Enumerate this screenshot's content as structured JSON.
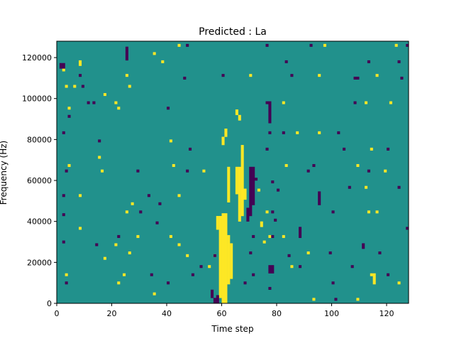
{
  "chart_data": {
    "type": "heatmap",
    "title": "Predicted : La",
    "xlabel": "Time step",
    "ylabel": "Frequency (Hz)",
    "xlim": [
      0,
      128
    ],
    "ylim": [
      0,
      128000
    ],
    "n_time_steps": 128,
    "n_freq_bins": 96,
    "xticks": [
      0,
      20,
      40,
      60,
      80,
      100,
      120
    ],
    "yticks": [
      0,
      20000,
      40000,
      60000,
      80000,
      100000,
      120000
    ],
    "colormap": {
      "background": "#21918c",
      "high": "#fde725",
      "low": "#440154"
    },
    "background_value": 0.5,
    "cells_note": "runs as [time_step, start_freq_bin, length_bins, value]",
    "cells": [
      [
        60,
        0,
        33,
        1
      ],
      [
        61,
        0,
        33,
        1
      ],
      [
        59,
        2,
        30,
        1
      ],
      [
        58,
        27,
        5,
        1
      ],
      [
        62,
        37,
        13,
        1
      ],
      [
        62,
        7,
        18,
        1
      ],
      [
        63,
        9,
        13,
        1
      ],
      [
        61,
        61,
        3,
        1
      ],
      [
        60,
        58,
        3,
        1
      ],
      [
        66,
        30,
        20,
        1
      ],
      [
        67,
        32,
        26,
        1
      ],
      [
        65,
        40,
        10,
        1
      ],
      [
        68,
        38,
        4,
        1
      ],
      [
        65,
        69,
        2,
        1
      ],
      [
        66,
        67,
        2,
        1
      ],
      [
        70,
        32,
        18,
        0
      ],
      [
        71,
        36,
        14,
        0
      ],
      [
        69,
        30,
        5,
        0
      ],
      [
        77,
        66,
        8,
        0
      ],
      [
        77,
        11,
        3,
        0
      ],
      [
        78,
        11,
        3,
        0
      ],
      [
        56,
        2,
        3,
        0
      ],
      [
        57,
        0,
        2,
        0
      ],
      [
        58,
        0,
        3,
        0
      ],
      [
        2,
        85,
        1,
        1
      ],
      [
        3,
        79,
        1,
        1
      ],
      [
        4,
        71,
        1,
        1
      ],
      [
        4,
        50,
        1,
        1
      ],
      [
        3,
        10,
        1,
        1
      ],
      [
        8,
        87,
        2,
        1
      ],
      [
        6,
        79,
        1,
        1
      ],
      [
        8,
        39,
        1,
        1
      ],
      [
        8,
        27,
        1,
        1
      ],
      [
        15,
        53,
        1,
        1
      ],
      [
        16,
        48,
        1,
        1
      ],
      [
        17,
        76,
        1,
        1
      ],
      [
        21,
        73,
        1,
        1
      ],
      [
        22,
        71,
        1,
        1
      ],
      [
        25,
        83,
        1,
        1
      ],
      [
        26,
        79,
        1,
        1
      ],
      [
        27,
        36,
        1,
        1
      ],
      [
        25,
        33,
        1,
        1
      ],
      [
        29,
        24,
        1,
        1
      ],
      [
        21,
        21,
        1,
        1
      ],
      [
        17,
        16,
        1,
        1
      ],
      [
        26,
        18,
        1,
        1
      ],
      [
        24,
        10,
        1,
        1
      ],
      [
        22,
        7,
        1,
        1
      ],
      [
        35,
        91,
        1,
        1
      ],
      [
        38,
        88,
        1,
        1
      ],
      [
        41,
        59,
        1,
        1
      ],
      [
        42,
        50,
        1,
        1
      ],
      [
        44,
        39,
        1,
        1
      ],
      [
        41,
        24,
        1,
        1
      ],
      [
        44,
        21,
        1,
        1
      ],
      [
        47,
        17,
        1,
        1
      ],
      [
        53,
        48,
        1,
        1
      ],
      [
        55,
        13,
        1,
        1
      ],
      [
        57,
        17,
        1,
        1
      ],
      [
        35,
        3,
        1,
        1
      ],
      [
        44,
        94,
        1,
        1
      ],
      [
        70,
        83,
        1,
        1
      ],
      [
        82,
        73,
        1,
        1
      ],
      [
        87,
        62,
        1,
        1
      ],
      [
        95,
        62,
        1,
        1
      ],
      [
        83,
        50,
        1,
        1
      ],
      [
        82,
        24,
        1,
        1
      ],
      [
        85,
        13,
        1,
        1
      ],
      [
        91,
        18,
        1,
        1
      ],
      [
        93,
        1,
        1,
        1
      ],
      [
        97,
        94,
        1,
        1
      ],
      [
        95,
        83,
        1,
        1
      ],
      [
        112,
        73,
        1,
        1
      ],
      [
        112,
        42,
        1,
        1
      ],
      [
        113,
        33,
        1,
        1
      ],
      [
        109,
        50,
        1,
        1
      ],
      [
        114,
        56,
        1,
        1
      ],
      [
        116,
        33,
        1,
        1
      ],
      [
        119,
        48,
        1,
        1
      ],
      [
        116,
        83,
        1,
        1
      ],
      [
        121,
        73,
        1,
        1
      ],
      [
        123,
        94,
        1,
        1
      ],
      [
        114,
        10,
        1,
        1
      ],
      [
        115,
        7,
        4,
        1
      ],
      [
        124,
        7,
        1,
        1
      ],
      [
        109,
        1,
        1,
        1
      ],
      [
        73,
        41,
        1,
        1
      ],
      [
        76,
        33,
        1,
        1
      ],
      [
        77,
        24,
        1,
        1
      ],
      [
        75,
        22,
        1,
        1
      ],
      [
        74,
        28,
        2,
        1
      ],
      [
        1,
        86,
        2,
        0
      ],
      [
        2,
        86,
        2,
        0
      ],
      [
        8,
        83,
        1,
        0
      ],
      [
        9,
        79,
        1,
        0
      ],
      [
        11,
        73,
        1,
        0
      ],
      [
        13,
        73,
        1,
        0
      ],
      [
        4,
        68,
        1,
        0
      ],
      [
        2,
        62,
        1,
        0
      ],
      [
        15,
        59,
        1,
        0
      ],
      [
        3,
        48,
        1,
        0
      ],
      [
        2,
        39,
        1,
        0
      ],
      [
        2,
        32,
        1,
        0
      ],
      [
        3,
        7,
        1,
        0
      ],
      [
        2,
        22,
        1,
        0
      ],
      [
        14,
        21,
        1,
        0
      ],
      [
        22,
        24,
        1,
        0
      ],
      [
        25,
        89,
        5,
        0
      ],
      [
        30,
        33,
        1,
        0
      ],
      [
        29,
        48,
        1,
        0
      ],
      [
        33,
        39,
        1,
        0
      ],
      [
        37,
        36,
        1,
        0
      ],
      [
        36,
        29,
        1,
        0
      ],
      [
        34,
        10,
        1,
        0
      ],
      [
        40,
        7,
        1,
        0
      ],
      [
        40,
        71,
        1,
        0
      ],
      [
        46,
        82,
        1,
        0
      ],
      [
        47,
        94,
        1,
        0
      ],
      [
        48,
        56,
        1,
        0
      ],
      [
        47,
        48,
        1,
        0
      ],
      [
        49,
        10,
        1,
        0
      ],
      [
        52,
        13,
        1,
        0
      ],
      [
        60,
        83,
        1,
        0
      ],
      [
        57,
        17,
        1,
        0
      ],
      [
        68,
        7,
        1,
        0
      ],
      [
        71,
        10,
        1,
        0
      ],
      [
        70,
        18,
        1,
        0
      ],
      [
        76,
        94,
        1,
        0
      ],
      [
        76,
        73,
        1,
        0
      ],
      [
        76,
        56,
        1,
        0
      ],
      [
        77,
        62,
        1,
        0
      ],
      [
        82,
        62,
        1,
        0
      ],
      [
        85,
        83,
        1,
        0
      ],
      [
        83,
        88,
        1,
        0
      ],
      [
        78,
        44,
        1,
        0
      ],
      [
        78,
        33,
        1,
        0
      ],
      [
        80,
        41,
        1,
        0
      ],
      [
        78,
        24,
        1,
        0
      ],
      [
        84,
        17,
        1,
        0
      ],
      [
        88,
        24,
        4,
        0
      ],
      [
        88,
        13,
        1,
        0
      ],
      [
        92,
        94,
        1,
        0
      ],
      [
        91,
        48,
        1,
        0
      ],
      [
        95,
        36,
        5,
        0
      ],
      [
        93,
        50,
        1,
        0
      ],
      [
        99,
        18,
        1,
        0
      ],
      [
        100,
        33,
        1,
        0
      ],
      [
        101,
        1,
        1,
        0
      ],
      [
        102,
        62,
        1,
        0
      ],
      [
        104,
        56,
        1,
        0
      ],
      [
        106,
        42,
        1,
        0
      ],
      [
        108,
        82,
        1,
        0
      ],
      [
        109,
        82,
        1,
        0
      ],
      [
        108,
        73,
        1,
        0
      ],
      [
        113,
        48,
        1,
        0
      ],
      [
        111,
        20,
        2,
        0
      ],
      [
        107,
        13,
        1,
        0
      ],
      [
        100,
        7,
        1,
        0
      ],
      [
        117,
        18,
        1,
        0
      ],
      [
        120,
        56,
        1,
        0
      ],
      [
        120,
        10,
        1,
        0
      ],
      [
        124,
        42,
        1,
        0
      ],
      [
        125,
        82,
        1,
        0
      ],
      [
        127,
        27,
        1,
        0
      ],
      [
        127,
        94,
        1,
        0
      ],
      [
        124,
        88,
        1,
        0
      ],
      [
        113,
        88,
        1,
        0
      ],
      [
        77,
        5,
        1,
        0
      ],
      [
        71,
        24,
        1,
        0
      ],
      [
        79,
        30,
        1,
        0
      ],
      [
        72,
        45,
        1,
        0
      ]
    ]
  }
}
